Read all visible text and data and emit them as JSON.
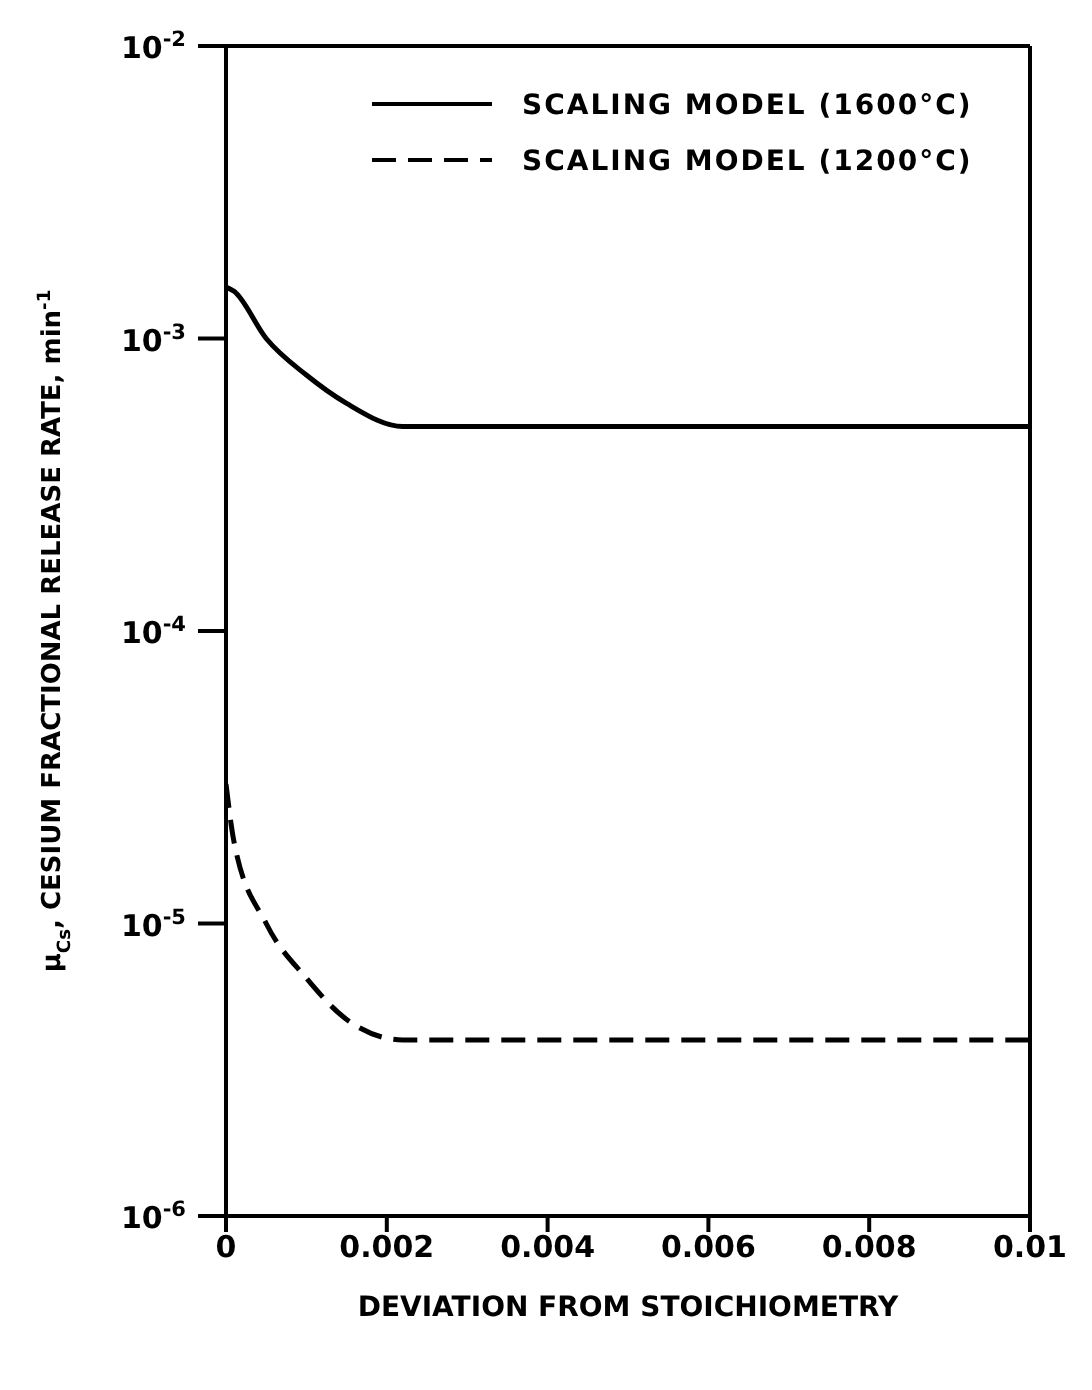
{
  "chart_data": {
    "type": "line",
    "xlabel": "DEVIATION FROM STOICHIOMETRY",
    "ylabel": "μ$_{Cs}$, CESIUM FRACTIONAL RELEASE RATE, min$^{-1}$",
    "x": [
      0,
      0.0001,
      0.0005,
      0.001,
      0.0015,
      0.0022,
      0.01
    ],
    "series": [
      {
        "name": "SCALING MODEL (1600°C)",
        "color": "#000000",
        "line_style": "solid",
        "values": [
          0.0015,
          0.00145,
          0.001,
          0.00075,
          0.0006,
          0.0005,
          0.0005
        ]
      },
      {
        "name": "SCALING MODEL (1200°C)",
        "color": "#000000",
        "line_style": "dashed",
        "values": [
          3e-05,
          1.9e-05,
          1e-05,
          6.5e-06,
          4.7e-06,
          4e-06,
          4e-06
        ]
      }
    ],
    "xlim": [
      0,
      0.01
    ],
    "xticks": [
      0,
      0.002,
      0.004,
      0.006,
      0.008,
      0.01
    ],
    "ylim": [
      1e-06,
      0.01
    ],
    "yticks": [
      {
        "value": 1e-06,
        "label": "10$^{-6}$"
      },
      {
        "value": 1e-05,
        "label": "10$^{-5}$"
      },
      {
        "value": 0.0001,
        "label": "10$^{-4}$"
      },
      {
        "value": 0.001,
        "label": "10$^{-3}$"
      },
      {
        "value": 0.01,
        "label": "10$^{-2}$"
      }
    ],
    "log": "y",
    "grid": false,
    "legend": "top right",
    "marker": "none"
  }
}
